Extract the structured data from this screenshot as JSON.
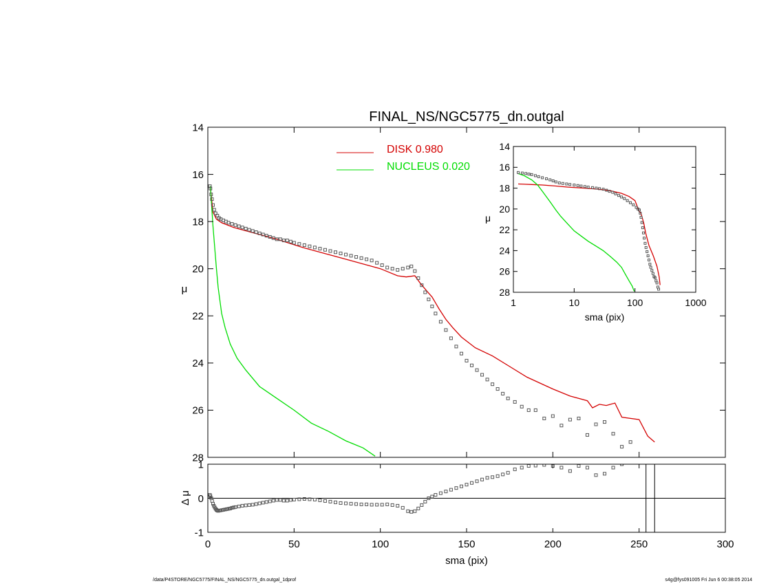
{
  "colors": {
    "disk": "#d40000",
    "nucleus": "#00dd00",
    "data": "#555555",
    "axis": "#000000"
  },
  "footer": {
    "left": "/data/P4STORE/NGC5775/FINAL_NS/NGC5775_dn.outgal_1dprof",
    "right": "s4g@fys091005  Fri Jun  6 00:38:05 2014"
  },
  "chart_data": [
    {
      "id": "main",
      "type": "line",
      "title": "FINAL_NS/NGC5775_dn.outgal",
      "xlabel": "",
      "ylabel": "μ",
      "xlim": [
        0,
        300
      ],
      "ylim": [
        28,
        14
      ],
      "xticks": [
        "0",
        "50",
        "100",
        "150",
        "200",
        "250",
        "300"
      ],
      "yticks": [
        "14",
        "16",
        "18",
        "20",
        "22",
        "24",
        "26",
        "28"
      ],
      "legend": {
        "placement": "top-center",
        "entries": [
          {
            "label": "DISK  0.980",
            "series": "disk"
          },
          {
            "label": "NUCLEUS  0.020",
            "series": "nucleus"
          }
        ]
      },
      "series": [
        {
          "key": "disk",
          "name": "DISK  0.980",
          "style": "line",
          "x": [
            1.5,
            3,
            5,
            8,
            15,
            25,
            40,
            55,
            70,
            85,
            100,
            110,
            115,
            120,
            123,
            127,
            130,
            134,
            138,
            142,
            147,
            155,
            165,
            175,
            185,
            200,
            210,
            220,
            223,
            227,
            231,
            236,
            240,
            250,
            255,
            259
          ],
          "y": [
            16.6,
            17.6,
            17.9,
            18.05,
            18.25,
            18.45,
            18.75,
            19.1,
            19.4,
            19.7,
            20.0,
            20.3,
            20.35,
            20.3,
            20.6,
            20.95,
            21.2,
            21.7,
            22.15,
            22.5,
            22.9,
            23.35,
            23.7,
            24.15,
            24.6,
            25.1,
            25.4,
            25.6,
            25.9,
            25.75,
            25.8,
            25.7,
            26.3,
            26.4,
            27.1,
            27.35
          ]
        },
        {
          "key": "nucleus",
          "name": "NUCLEUS  0.020",
          "style": "line",
          "x": [
            1.5,
            2,
            3,
            4,
            5,
            6,
            8,
            10,
            13,
            17,
            22,
            30,
            40,
            50,
            60,
            70,
            80,
            90,
            97
          ],
          "y": [
            16.5,
            17.1,
            18.2,
            19.1,
            20.0,
            20.8,
            21.9,
            22.5,
            23.2,
            23.8,
            24.3,
            25.0,
            25.5,
            26.0,
            26.55,
            26.9,
            27.3,
            27.6,
            27.95
          ]
        },
        {
          "key": "data",
          "name": "",
          "style": "squares",
          "x": [
            1.2,
            1.5,
            1.9,
            2.4,
            3,
            3.7,
            4.5,
            5.5,
            6.5,
            7.5,
            9,
            10.5,
            12,
            14,
            16,
            18,
            20,
            22,
            24,
            26,
            28,
            30,
            32,
            34,
            36,
            38,
            40,
            42,
            44,
            46,
            48,
            50,
            53,
            56,
            59,
            62,
            65,
            68,
            71,
            74,
            77,
            80,
            83,
            86,
            89,
            92,
            95,
            98,
            101,
            104,
            107,
            110,
            113,
            116,
            118,
            120,
            122,
            124,
            126,
            128,
            130,
            132,
            135,
            138,
            141,
            144,
            147,
            150,
            153,
            156,
            159,
            162,
            165,
            168,
            171,
            174,
            178,
            182,
            186,
            190,
            195,
            200,
            205,
            210,
            215,
            220,
            225,
            230,
            235,
            240,
            245
          ],
          "y": [
            16.5,
            16.6,
            16.85,
            17.05,
            17.3,
            17.5,
            17.65,
            17.75,
            17.85,
            17.9,
            17.95,
            18.0,
            18.05,
            18.1,
            18.15,
            18.2,
            18.25,
            18.3,
            18.35,
            18.4,
            18.45,
            18.5,
            18.55,
            18.6,
            18.65,
            18.7,
            18.75,
            18.75,
            18.8,
            18.8,
            18.85,
            18.9,
            18.95,
            19.0,
            19.05,
            19.1,
            19.15,
            19.2,
            19.25,
            19.3,
            19.35,
            19.4,
            19.45,
            19.5,
            19.55,
            19.6,
            19.65,
            19.75,
            19.85,
            19.95,
            20.0,
            20.05,
            20.0,
            19.95,
            19.9,
            20.1,
            20.4,
            20.7,
            21.0,
            21.3,
            21.6,
            21.9,
            22.25,
            22.6,
            22.95,
            23.3,
            23.6,
            23.9,
            24.1,
            24.3,
            24.5,
            24.7,
            24.9,
            25.1,
            25.3,
            25.5,
            25.65,
            25.85,
            26.0,
            26.0,
            26.35,
            26.25,
            26.65,
            26.4,
            26.35,
            27.05,
            26.6,
            26.5,
            27.0,
            27.55,
            27.35
          ]
        }
      ]
    },
    {
      "id": "residual",
      "type": "scatter",
      "title": "",
      "xlabel": "sma (pix)",
      "ylabel": "Δ μ",
      "xlim": [
        0,
        300
      ],
      "ylim": [
        -1,
        1
      ],
      "xticks": [
        "0",
        "50",
        "100",
        "150",
        "200",
        "250",
        "300"
      ],
      "yticks": [
        "1",
        "0",
        "-1"
      ],
      "zero_line": 0,
      "vertical_lines": [
        254,
        259
      ],
      "series": [
        {
          "key": "residual",
          "name": "",
          "style": "squares",
          "x": [
            1.2,
            1.5,
            2,
            2.5,
            3,
            3.5,
            4,
            4.5,
            5,
            5.5,
            6,
            7,
            8,
            9,
            10,
            11,
            12,
            13,
            14,
            15,
            16,
            18,
            20,
            22,
            24,
            26,
            28,
            30,
            32,
            34,
            36,
            38,
            40,
            42,
            44,
            46,
            48,
            50,
            53,
            56,
            59,
            62,
            65,
            68,
            71,
            74,
            77,
            80,
            83,
            86,
            89,
            92,
            95,
            98,
            101,
            104,
            107,
            110,
            113,
            116,
            118,
            120,
            122,
            124,
            126,
            128,
            130,
            132,
            135,
            138,
            141,
            144,
            147,
            150,
            153,
            156,
            159,
            162,
            165,
            168,
            171,
            174,
            178,
            182,
            186,
            190,
            195,
            200,
            205,
            210,
            215,
            220,
            225,
            230,
            235,
            240,
            245
          ],
          "y": [
            0.1,
            0.06,
            0.0,
            -0.08,
            -0.16,
            -0.22,
            -0.27,
            -0.31,
            -0.34,
            -0.36,
            -0.37,
            -0.36,
            -0.35,
            -0.34,
            -0.33,
            -0.32,
            -0.31,
            -0.3,
            -0.28,
            -0.27,
            -0.26,
            -0.24,
            -0.22,
            -0.21,
            -0.2,
            -0.19,
            -0.17,
            -0.15,
            -0.13,
            -0.11,
            -0.09,
            -0.07,
            -0.05,
            -0.05,
            -0.07,
            -0.07,
            -0.05,
            -0.04,
            -0.03,
            -0.02,
            -0.03,
            -0.04,
            -0.06,
            -0.08,
            -0.1,
            -0.12,
            -0.14,
            -0.15,
            -0.16,
            -0.17,
            -0.18,
            -0.18,
            -0.19,
            -0.19,
            -0.19,
            -0.18,
            -0.2,
            -0.22,
            -0.28,
            -0.38,
            -0.4,
            -0.38,
            -0.3,
            -0.2,
            -0.1,
            0.0,
            0.05,
            0.1,
            0.15,
            0.2,
            0.25,
            0.3,
            0.35,
            0.4,
            0.45,
            0.5,
            0.55,
            0.6,
            0.62,
            0.65,
            0.7,
            0.75,
            0.85,
            0.9,
            0.95,
            0.96,
            0.98,
            0.95,
            0.9,
            0.8,
            0.95,
            0.9,
            0.68,
            0.72,
            0.9,
            1.0,
            1.05
          ]
        }
      ]
    },
    {
      "id": "inset",
      "type": "line",
      "title": "",
      "xlabel": "sma (pix)",
      "ylabel": "μ",
      "xscale": "log",
      "xlim": [
        1,
        1000
      ],
      "ylim": [
        28,
        14
      ],
      "xticks": [
        "1",
        "10",
        "100",
        "1000"
      ],
      "yticks": [
        "14",
        "16",
        "18",
        "20",
        "22",
        "24",
        "26",
        "28"
      ],
      "series": [
        {
          "key": "disk",
          "name": "",
          "style": "line",
          "x": [
            1.2,
            2,
            3,
            5,
            8,
            15,
            25,
            40,
            60,
            80,
            100,
            115,
            120,
            125,
            130,
            140,
            150,
            170,
            200,
            230,
            250,
            259
          ],
          "y": [
            17.6,
            17.65,
            17.7,
            17.8,
            17.9,
            18.0,
            18.1,
            18.25,
            18.5,
            18.8,
            19.2,
            20.1,
            20.3,
            20.4,
            20.7,
            21.4,
            22.3,
            23.5,
            24.5,
            25.5,
            26.5,
            27.3
          ]
        },
        {
          "key": "nucleus",
          "name": "",
          "style": "line",
          "x": [
            1.2,
            1.5,
            2,
            2.5,
            3,
            4,
            5,
            6,
            8,
            10,
            13,
            17,
            22,
            30,
            40,
            50,
            60,
            70,
            80,
            90,
            97
          ],
          "y": [
            16.6,
            16.8,
            17.2,
            17.7,
            18.3,
            19.3,
            20.1,
            20.7,
            21.5,
            22.1,
            22.6,
            23.1,
            23.5,
            24.0,
            24.6,
            25.1,
            25.6,
            26.3,
            26.9,
            27.4,
            27.9
          ]
        },
        {
          "key": "data",
          "name": "",
          "style": "squares",
          "x": [
            1.2,
            1.4,
            1.6,
            1.8,
            2,
            2.3,
            2.6,
            3,
            3.5,
            4,
            4.5,
            5,
            5.7,
            6.5,
            7.5,
            8.5,
            10,
            11.5,
            13,
            15,
            17,
            20,
            23,
            26,
            30,
            34,
            38,
            43,
            48,
            54,
            60,
            67,
            75,
            84,
            94,
            105,
            112,
            118,
            122,
            126,
            130,
            134,
            138,
            142,
            147,
            152,
            158,
            164,
            170,
            176,
            182,
            190,
            198,
            206,
            214,
            222,
            230,
            238,
            245
          ],
          "y": [
            16.5,
            16.55,
            16.6,
            16.65,
            16.7,
            16.8,
            16.9,
            17.0,
            17.1,
            17.2,
            17.3,
            17.4,
            17.5,
            17.55,
            17.6,
            17.65,
            17.7,
            17.75,
            17.8,
            17.85,
            17.9,
            17.95,
            18.0,
            18.05,
            18.1,
            18.2,
            18.3,
            18.4,
            18.55,
            18.7,
            18.85,
            19.0,
            19.2,
            19.4,
            19.6,
            19.85,
            20.0,
            20.1,
            20.4,
            20.8,
            21.3,
            21.8,
            22.3,
            22.8,
            23.3,
            23.7,
            24.1,
            24.5,
            24.9,
            25.3,
            25.6,
            25.9,
            26.2,
            26.5,
            26.6,
            26.9,
            27.1,
            27.5,
            27.7
          ]
        }
      ]
    }
  ]
}
